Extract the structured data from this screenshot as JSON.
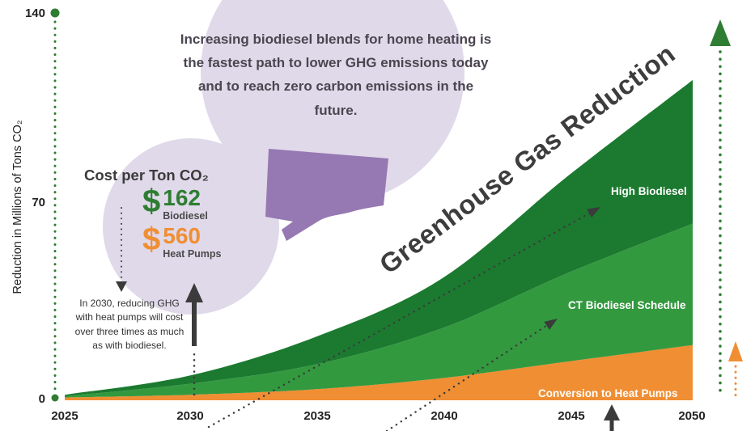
{
  "title": "Greenhouse Gas Reduction",
  "y_axis": {
    "label": "Reduction in Millions of Tons CO₂",
    "ticks": [
      "140",
      "70",
      "0"
    ]
  },
  "x_axis": {
    "ticks": [
      "2025",
      "2030",
      "2035",
      "2040",
      "2045",
      "2050"
    ]
  },
  "bubble": {
    "text": "Increasing biodiesel blends for home heating is the fastest path to lower GHG emissions today and to reach zero carbon emissions in the future."
  },
  "cost_bubble": {
    "heading": "Cost per Ton CO₂",
    "items": [
      {
        "symbol": "$",
        "value": "162",
        "label": "Biodiesel"
      },
      {
        "symbol": "$",
        "value": "560",
        "label": "Heat Pumps"
      }
    ]
  },
  "note": "In 2030, reducing GHG with heat pumps will cost over three times as much as with biodiesel.",
  "area_labels": {
    "high_biodiesel": "High Biodiesel",
    "ct_schedule": "CT Biodiesel Schedule",
    "heat_pumps": "Conversion to Heat Pumps"
  },
  "colors": {
    "green-dark": "#1B7A2F",
    "green-mid": "#33993F",
    "orange": "#F08E33",
    "accent-green": "#2E7D32",
    "purple": "#9678B2",
    "lavender": "#DFD9EA",
    "ink": "#3B3B3B"
  },
  "chart_data": {
    "type": "area",
    "stacked": true,
    "title": "Greenhouse Gas Reduction",
    "ylabel": "Reduction in Millions of Tons CO₂",
    "x": [
      2025,
      2030,
      2035,
      2040,
      2045,
      2050
    ],
    "ylim": [
      0,
      140
    ],
    "yticks": [
      0,
      70,
      140
    ],
    "grid": false,
    "legend_position": "on-chart",
    "series": [
      {
        "name": "Conversion to Heat Pumps",
        "color": "#F08E33",
        "values": [
          1,
          2,
          4,
          8,
          14,
          20
        ]
      },
      {
        "name": "CT Biodiesel Schedule",
        "color": "#33993F",
        "values": [
          0.5,
          4,
          9,
          18,
          32,
          44
        ]
      },
      {
        "name": "High Biodiesel",
        "color": "#1B7A2F",
        "values": [
          0.5,
          3,
          10,
          18,
          35,
          52
        ]
      }
    ]
  }
}
